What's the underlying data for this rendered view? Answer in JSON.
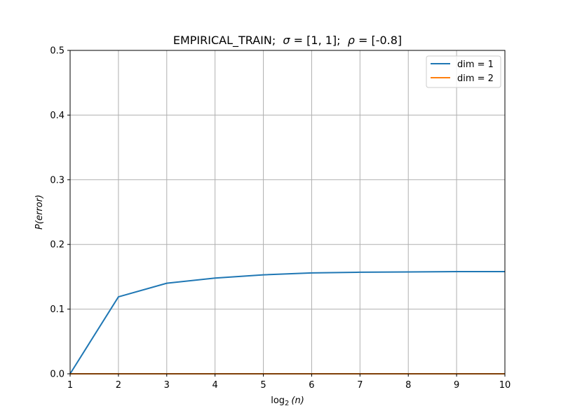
{
  "chart_data": {
    "type": "line",
    "title": {
      "prefix": "EMPIRICAL_TRAIN;  ",
      "sigma_symbol": "σ",
      "sigma_value": " = [1, 1];  ",
      "rho_symbol": "ρ",
      "rho_value": " = [-0.8]"
    },
    "xlabel": {
      "base": "log",
      "sub": "2",
      "arg": "(n)"
    },
    "ylabel": {
      "p": "P",
      "arg": "(error)"
    },
    "xlim": [
      1,
      10
    ],
    "ylim": [
      0,
      0.5
    ],
    "x_ticks": [
      1,
      2,
      3,
      4,
      5,
      6,
      7,
      8,
      9,
      10
    ],
    "y_ticks": [
      0.0,
      0.1,
      0.2,
      0.3,
      0.4,
      0.5
    ],
    "y_tick_labels": [
      "0.0",
      "0.1",
      "0.2",
      "0.3",
      "0.4",
      "0.5"
    ],
    "grid": true,
    "legend_position": "top-right",
    "x": [
      1,
      2,
      3,
      4,
      5,
      6,
      7,
      8,
      9,
      10
    ],
    "series": [
      {
        "name": "dim = 1",
        "color": "#1f77b4",
        "values": [
          0.0,
          0.119,
          0.14,
          0.148,
          0.153,
          0.156,
          0.157,
          0.1575,
          0.158,
          0.158
        ]
      },
      {
        "name": "dim = 2",
        "color": "#ff7f0e",
        "values": [
          0.0,
          0.0,
          0.0,
          0.0,
          0.0,
          0.0,
          0.0,
          0.0,
          0.0,
          0.0
        ]
      }
    ]
  }
}
